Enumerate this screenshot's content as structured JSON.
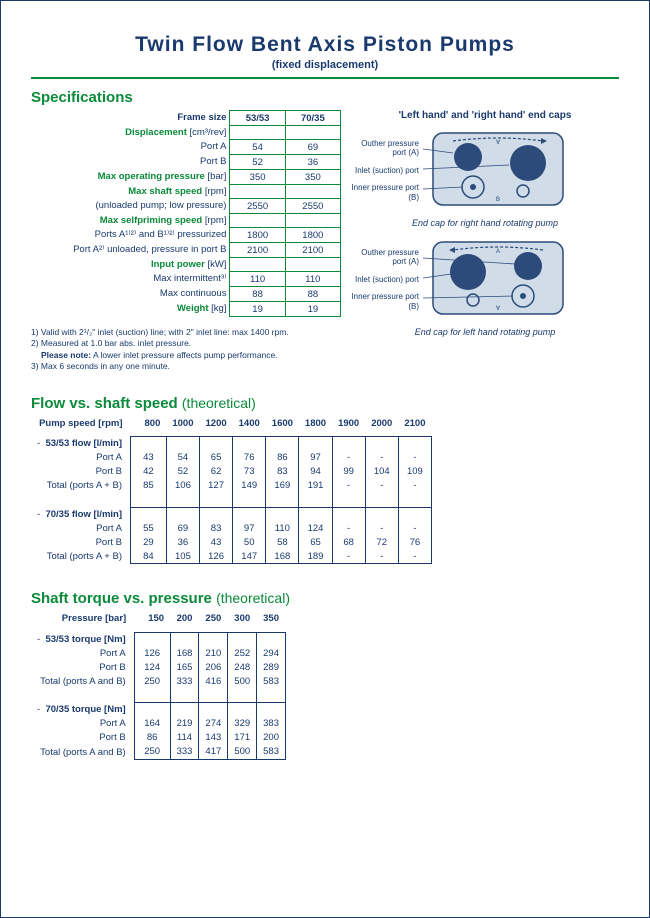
{
  "title": "Twin Flow Bent Axis Piston Pumps",
  "subtitle": "(fixed displacement)",
  "colors": {
    "green": "#0a8a3a",
    "blue": "#1a3a6e",
    "endcap_fill": "#d0dce8",
    "endcap_stroke": "#2c4a7a"
  },
  "specifications": {
    "header": "Specifications",
    "frame_size_label": "Frame size",
    "columns": [
      "53/53",
      "70/35"
    ],
    "rows": [
      {
        "label": "Displacement",
        "unit": "[cm³/rev]",
        "green": true,
        "values": [
          "",
          ""
        ]
      },
      {
        "label": "Port A",
        "green": false,
        "values": [
          "54",
          "69"
        ]
      },
      {
        "label": "Port B",
        "green": false,
        "values": [
          "52",
          "36"
        ]
      },
      {
        "label": "Max operating pressure",
        "unit": "[bar]",
        "green": true,
        "values": [
          "350",
          "350"
        ]
      },
      {
        "label": "Max shaft speed",
        "unit": "[rpm]",
        "green": true,
        "values": [
          "",
          ""
        ]
      },
      {
        "label": "(unloaded pump; low pressure)",
        "green": false,
        "values": [
          "2550",
          "2550"
        ]
      },
      {
        "label": "Max selfpriming speed",
        "unit": "[rpm]",
        "green": true,
        "values": [
          "",
          ""
        ]
      },
      {
        "label": "Ports A¹⁾²⁾ and B¹⁾²⁾ pressurized",
        "green": false,
        "values": [
          "1800",
          "1800"
        ]
      },
      {
        "label": "Port A²⁾ unloaded, pressure in port B",
        "green": false,
        "values": [
          "2100",
          "2100"
        ]
      },
      {
        "label": "Input power",
        "unit": "[kW]",
        "green": true,
        "values": [
          "",
          ""
        ]
      },
      {
        "label": "Max intermittent³⁾",
        "green": false,
        "values": [
          "110",
          "110"
        ]
      },
      {
        "label": "Max continuous",
        "green": false,
        "values": [
          "88",
          "88"
        ]
      },
      {
        "label": "Weight",
        "unit": "[kg]",
        "green": true,
        "values": [
          "19",
          "19"
        ]
      }
    ],
    "footnotes": [
      "1) Valid with 2¹/₂\" inlet (suction) line; with 2\" inlet line: max 1400 rpm.",
      "2) Measured at 1.0 bar abs. inlet pressure.",
      "   Please note: A lower inlet pressure affects pump performance.",
      "3) Max 6 seconds in any one minute."
    ]
  },
  "endcaps": {
    "title": "'Left hand' and 'right hand' end caps",
    "port_labels": [
      "Outher pressure port (A)",
      "Inlet (suction) port",
      "Inner pressure port (B)"
    ],
    "caption_right": "End cap for right hand rotating pump",
    "caption_left": "End cap for left hand rotating pump"
  },
  "flow_table": {
    "header": "Flow vs. shaft speed",
    "header_sub": "(theoretical)",
    "col_label": "Pump speed [rpm]",
    "columns": [
      "800",
      "1000",
      "1200",
      "1400",
      "1600",
      "1800",
      "1900",
      "2000",
      "2100"
    ],
    "groups": [
      {
        "title": "53/53 flow [l/min]",
        "rows": [
          {
            "label": "Port A",
            "values": [
              "43",
              "54",
              "65",
              "76",
              "86",
              "97",
              "-",
              "-",
              "-"
            ]
          },
          {
            "label": "Port B",
            "values": [
              "42",
              "52",
              "62",
              "73",
              "83",
              "94",
              "99",
              "104",
              "109"
            ]
          },
          {
            "label": "Total (ports A + B)",
            "values": [
              "85",
              "106",
              "127",
              "149",
              "169",
              "191",
              "-",
              "-",
              "-"
            ]
          }
        ]
      },
      {
        "title": "70/35 flow [l/min]",
        "rows": [
          {
            "label": "Port A",
            "values": [
              "55",
              "69",
              "83",
              "97",
              "110",
              "124",
              "-",
              "-",
              "-"
            ]
          },
          {
            "label": "Port B",
            "values": [
              "29",
              "36",
              "43",
              "50",
              "58",
              "65",
              "68",
              "72",
              "76"
            ]
          },
          {
            "label": "Total (ports A + B)",
            "values": [
              "84",
              "105",
              "126",
              "147",
              "168",
              "189",
              "-",
              "-",
              "-"
            ]
          }
        ]
      }
    ]
  },
  "torque_table": {
    "header": "Shaft torque vs. pressure",
    "header_sub": "(theoretical)",
    "col_label": "Pressure [bar]",
    "columns": [
      "150",
      "200",
      "250",
      "300",
      "350"
    ],
    "groups": [
      {
        "title": "53/53 torque [Nm]",
        "rows": [
          {
            "label": "Port A",
            "values": [
              "126",
              "168",
              "210",
              "252",
              "294"
            ]
          },
          {
            "label": "Port B",
            "values": [
              "124",
              "165",
              "206",
              "248",
              "289"
            ]
          },
          {
            "label": "Total (ports A and B)",
            "values": [
              "250",
              "333",
              "416",
              "500",
              "583"
            ]
          }
        ]
      },
      {
        "title": "70/35 torque [Nm]",
        "rows": [
          {
            "label": "Port A",
            "values": [
              "164",
              "219",
              "274",
              "329",
              "383"
            ]
          },
          {
            "label": "Port B",
            "values": [
              "86",
              "114",
              "143",
              "171",
              "200"
            ]
          },
          {
            "label": "Total (ports A and B)",
            "values": [
              "250",
              "333",
              "417",
              "500",
              "583"
            ]
          }
        ]
      }
    ]
  }
}
